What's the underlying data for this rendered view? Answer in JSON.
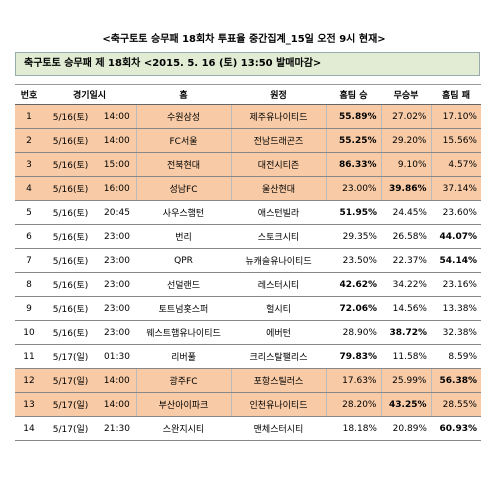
{
  "title": "<축구토토 승무패 18회차 투표율 중간집계_15일 오전 9시 현재>",
  "subtitle": "축구토토 승무패 제 18회차 <2015. 5. 16 (토) 13:50 발매마감>",
  "table": {
    "columns": [
      "번호",
      "경기일시",
      "홈",
      "원정",
      "홈팀 승",
      "무승부",
      "홈팀 패"
    ],
    "rows": [
      {
        "cells": [
          "1",
          "5/16(토)",
          "14:00",
          "수원삼성",
          "제주유나이티드",
          "55.89%",
          "27.02%",
          "17.10%"
        ],
        "fill": "#f8cba6"
      },
      {
        "cells": [
          "2",
          "5/16(토)",
          "14:00",
          "FC서울",
          "전남드래곤즈",
          "55.25%",
          "29.20%",
          "15.56%"
        ],
        "fill": "#f8cba6"
      },
      {
        "cells": [
          "3",
          "5/16(토)",
          "15:00",
          "전북현대",
          "대전시티즌",
          "86.33%",
          "9.10%",
          "4.57%"
        ],
        "fill": "#f8cba6"
      },
      {
        "cells": [
          "4",
          "5/16(토)",
          "16:00",
          "성남FC",
          "울산현대",
          "23.00%",
          "39.86%",
          "37.14%"
        ],
        "fill": "#f8cba6"
      },
      {
        "cells": [
          "5",
          "5/16(토)",
          "20:45",
          "사우스햄턴",
          "애스턴빌라",
          "51.95%",
          "24.45%",
          "23.60%"
        ]
      },
      {
        "cells": [
          "6",
          "5/16(토)",
          "23:00",
          "번리",
          "스토크시티",
          "29.35%",
          "26.58%",
          "44.07%"
        ]
      },
      {
        "cells": [
          "7",
          "5/16(토)",
          "23:00",
          "QPR",
          "뉴캐슬유나이티드",
          "23.50%",
          "22.37%",
          "54.14%"
        ]
      },
      {
        "cells": [
          "8",
          "5/16(토)",
          "23:00",
          "선덜랜드",
          "레스터시티",
          "42.62%",
          "34.22%",
          "23.16%"
        ]
      },
      {
        "cells": [
          "9",
          "5/16(토)",
          "23:00",
          "토트넘홋스퍼",
          "헐시티",
          "72.06%",
          "14.56%",
          "13.38%"
        ]
      },
      {
        "cells": [
          "10",
          "5/16(토)",
          "23:00",
          "웨스트햄유나이티드",
          "에버턴",
          "28.90%",
          "38.72%",
          "32.38%"
        ]
      },
      {
        "cells": [
          "11",
          "5/17(일)",
          "01:30",
          "리버풀",
          "크리스탈팰리스",
          "79.83%",
          "11.58%",
          "8.59%"
        ]
      },
      {
        "cells": [
          "12",
          "5/17(일)",
          "14:00",
          "광주FC",
          "포항스틸러스",
          "17.63%",
          "25.99%",
          "56.38%"
        ],
        "fill": "#f8cba6"
      },
      {
        "cells": [
          "13",
          "5/17(일)",
          "14:00",
          "부산아이파크",
          "인천유나이티드",
          "28.20%",
          "43.25%",
          "28.55%"
        ],
        "fill": "#f8cba6"
      },
      {
        "cells": [
          "14",
          "5/17(일)",
          "21:30",
          "스완지시티",
          "맨체스터시티",
          "18.18%",
          "20.89%",
          "60.93%"
        ]
      }
    ]
  }
}
